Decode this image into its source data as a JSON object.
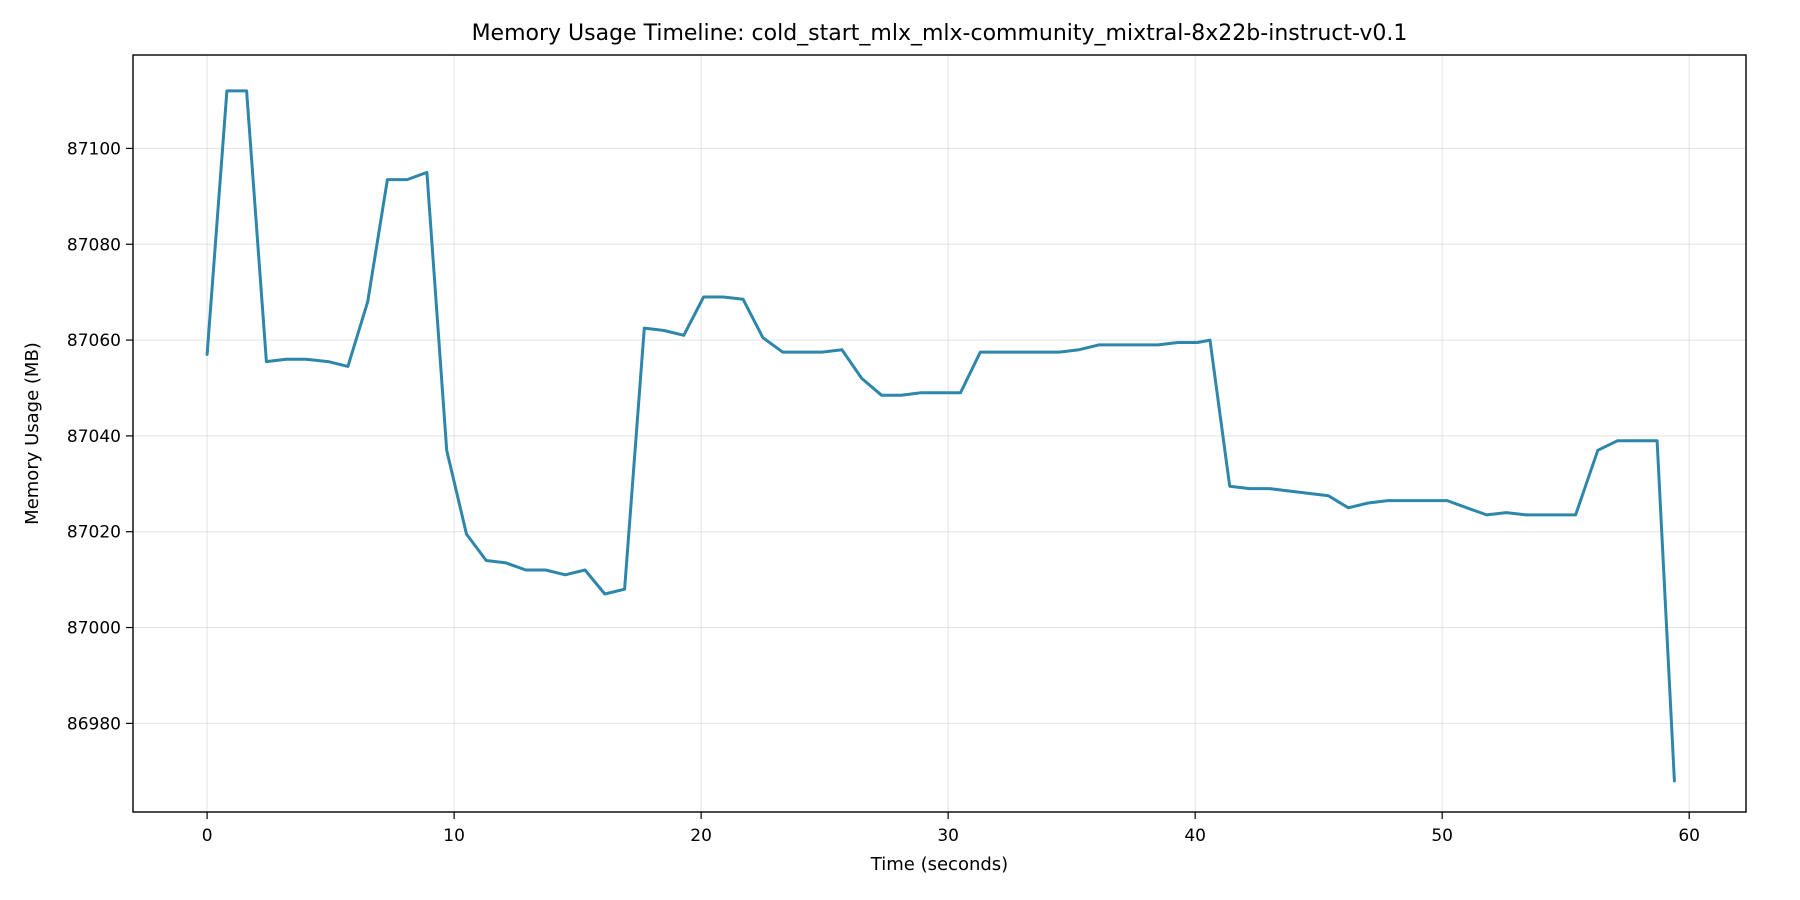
{
  "chart_data": {
    "type": "line",
    "title": "Memory Usage Timeline: cold_start_mlx_mlx-community_mixtral-8x22b-instruct-v0.1",
    "xlabel": "Time (seconds)",
    "ylabel": "Memory Usage (MB)",
    "xlim": [
      -3,
      62.3
    ],
    "ylim": [
      86961.5,
      87119.5
    ],
    "xticks": [
      0,
      10,
      20,
      30,
      40,
      50,
      60
    ],
    "yticks": [
      86980,
      87000,
      87020,
      87040,
      87060,
      87080,
      87100
    ],
    "grid": true,
    "color": "#2e86ab",
    "series": [
      {
        "x": [
          0,
          0.8,
          1.6,
          2.4,
          3.2,
          4.0,
          4.9,
          5.7,
          6.5,
          7.3,
          8.1,
          8.9,
          9.7,
          10.5,
          11.3,
          12.1,
          12.9,
          13.7,
          14.5,
          15.3,
          16.1,
          16.9,
          17.7,
          18.5,
          19.3,
          20.1,
          20.9,
          21.7,
          22.5,
          23.3,
          24.1,
          24.9,
          25.7,
          26.5,
          27.3,
          28.1,
          28.9,
          29.7,
          30.5,
          31.3,
          32.1,
          32.9,
          33.7,
          34.5,
          35.3,
          36.1,
          36.9,
          37.7,
          38.5,
          39.3,
          40.1,
          40.6,
          41.4,
          42.2,
          43.0,
          43.8,
          44.6,
          45.4,
          46.2,
          47.0,
          47.8,
          48.6,
          49.4,
          50.2,
          51.0,
          51.8,
          52.6,
          53.4,
          54.2,
          55.0,
          55.4,
          56.3,
          57.1,
          57.9,
          58.7,
          59.4
        ],
        "y": [
          87057,
          87112,
          87112,
          87055.5,
          87056,
          87056,
          87055.5,
          87054.5,
          87068,
          87093.5,
          87093.5,
          87095,
          87037,
          87019.5,
          87014,
          87013.5,
          87012,
          87012,
          87011,
          87012,
          87007,
          87008,
          87062.5,
          87062,
          87061,
          87069,
          87069,
          87068.5,
          87060.5,
          87057.5,
          87057.5,
          87057.5,
          87058,
          87052,
          87048.5,
          87048.5,
          87049,
          87049,
          87049,
          87057.5,
          87057.5,
          87057.5,
          87057.5,
          87057.5,
          87058,
          87059,
          87059,
          87059,
          87059,
          87059.5,
          87059.5,
          87060,
          87029.5,
          87029,
          87029,
          87028.5,
          87028,
          87027.5,
          87025,
          87026,
          87026.5,
          87026.5,
          87026.5,
          87026.5,
          87025,
          87023.5,
          87024,
          87023.5,
          87023.5,
          87023.5,
          87023.5,
          87037,
          87039,
          87039,
          87039,
          86968
        ]
      }
    ]
  }
}
